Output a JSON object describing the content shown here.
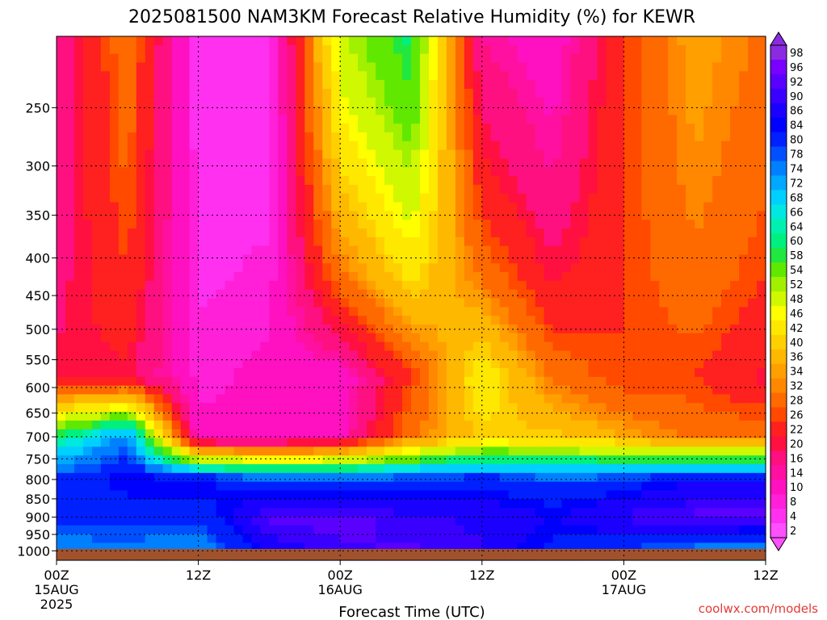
{
  "chart_data": {
    "type": "heatmap",
    "title": "2025081500 NAM3KM Forecast Relative Humidity (%) for KEWR",
    "xlabel": "Forecast Time (UTC)",
    "ylabel": "",
    "y_scale": "log",
    "y_inverted": true,
    "ylim": [
      200,
      1030
    ],
    "y_ticks": [
      250,
      300,
      350,
      400,
      450,
      500,
      550,
      600,
      650,
      700,
      750,
      800,
      850,
      900,
      950,
      1000
    ],
    "x_hours_range": [
      0,
      60
    ],
    "x_ticks": [
      {
        "hour": 0,
        "lines": [
          "00Z",
          "15AUG",
          "2025"
        ]
      },
      {
        "hour": 12,
        "lines": [
          "12Z"
        ]
      },
      {
        "hour": 24,
        "lines": [
          "00Z",
          "16AUG"
        ]
      },
      {
        "hour": 36,
        "lines": [
          "12Z"
        ]
      },
      {
        "hour": 48,
        "lines": [
          "00Z",
          "17AUG"
        ]
      },
      {
        "hour": 60,
        "lines": [
          "12Z"
        ]
      }
    ],
    "grid": true,
    "colorbar": {
      "labels": [
        98,
        96,
        92,
        90,
        86,
        84,
        80,
        78,
        74,
        72,
        68,
        66,
        64,
        60,
        58,
        54,
        52,
        48,
        46,
        42,
        40,
        36,
        34,
        32,
        28,
        26,
        22,
        20,
        16,
        14,
        10,
        8,
        4,
        2
      ],
      "colors": [
        "#8a2be2",
        "#7a00ff",
        "#5a00ff",
        "#3a00ff",
        "#1a00ff",
        "#0000ff",
        "#0020ff",
        "#0050ff",
        "#0080ff",
        "#00a8ff",
        "#00d0ff",
        "#00e8e0",
        "#00f0b0",
        "#00f080",
        "#20e840",
        "#60e800",
        "#a0f000",
        "#d0f800",
        "#ffff00",
        "#ffe800",
        "#ffd000",
        "#ffb800",
        "#ffa000",
        "#ff8800",
        "#ff6a00",
        "#ff4a00",
        "#ff2020",
        "#ff1040",
        "#ff1080",
        "#ff10a0",
        "#ff10c0",
        "#ff20d8",
        "#ff30f0",
        "#ff50ff"
      ]
    },
    "ground_color": "#a0522d",
    "series_description_profiles": [
      {
        "hour": 0,
        "upper": 15,
        "mid": 20,
        "p700": 60,
        "p800": 80,
        "p900": 82,
        "p1000": 70
      },
      {
        "hour": 6,
        "upper": 30,
        "mid": 20,
        "p700": 75,
        "p800": 85,
        "p900": 80,
        "p1000": 75
      },
      {
        "hour": 12,
        "upper": 5,
        "mid": 8,
        "p700": 10,
        "p800": 85,
        "p900": 80,
        "p1000": 70
      },
      {
        "hour": 18,
        "upper": 5,
        "mid": 10,
        "p700": 10,
        "p800": 78,
        "p900": 92,
        "p1000": 85
      },
      {
        "hour": 24,
        "upper": 50,
        "mid": 10,
        "p700": 12,
        "p800": 80,
        "p900": 92,
        "p1000": 90
      },
      {
        "hour": 30,
        "upper": 60,
        "mid": 25,
        "p700": 30,
        "p800": 80,
        "p900": 90,
        "p1000": 92
      },
      {
        "hour": 36,
        "upper": 15,
        "mid": 45,
        "p700": 40,
        "p800": 82,
        "p900": 88,
        "p1000": 90
      },
      {
        "hour": 42,
        "upper": 10,
        "mid": 30,
        "p700": 40,
        "p800": 78,
        "p900": 85,
        "p1000": 80
      },
      {
        "hour": 48,
        "upper": 25,
        "mid": 25,
        "p700": 35,
        "p800": 80,
        "p900": 90,
        "p1000": 75
      },
      {
        "hour": 54,
        "upper": 35,
        "mid": 25,
        "p700": 30,
        "p800": 85,
        "p900": 92,
        "p1000": 70
      },
      {
        "hour": 60,
        "upper": 30,
        "mid": 20,
        "p700": 30,
        "p800": 85,
        "p900": 92,
        "p1000": 65
      }
    ]
  },
  "credit": "coolwx.com/models"
}
